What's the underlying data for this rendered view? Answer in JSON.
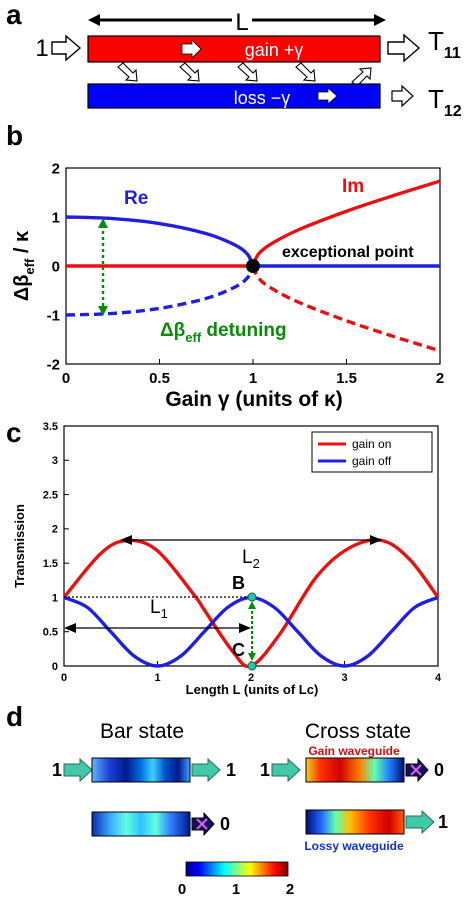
{
  "panels": {
    "a": {
      "label": "a",
      "length_label": "L",
      "input_label": "1",
      "gain_text": "gain +γ",
      "loss_text": "loss −γ",
      "out1": {
        "main": "T",
        "sub": "11"
      },
      "out2": {
        "main": "T",
        "sub": "12"
      },
      "gain_color": "#ff0000",
      "loss_color": "#0000ff"
    },
    "b": {
      "label": "b",
      "re_label": "Re",
      "im_label": "Im",
      "ep_label": "exceptional point",
      "detuning_label": {
        "pre": "Δβ",
        "sub": "eff",
        "post": " detuning"
      },
      "ylabel": {
        "pre": "Δβ",
        "sub": "eff",
        "post": " / κ"
      },
      "xlabel": "Gain γ  (units of κ)"
    },
    "c": {
      "label": "c",
      "xlabel": "Length L (units of Lc)",
      "ylabel": "Transmission",
      "legend": [
        "gain on",
        "gain off"
      ],
      "L1": {
        "main": "L",
        "sub": "1"
      },
      "L2": {
        "main": "L",
        "sub": "2"
      },
      "point_b": "B",
      "point_c": "C"
    },
    "d": {
      "label": "d",
      "bar_title": "Bar state",
      "cross_title": "Cross state",
      "gain_wg": "Gain waveguide",
      "lossy_wg": "Lossy waveguide",
      "bar_in": "1",
      "bar_out": "1",
      "bar_lower_out": "0",
      "cross_in": "1",
      "cross_upper_out": "0",
      "cross_lower_out": "1",
      "colorbar_ticks": [
        "0",
        "1",
        "2"
      ]
    }
  },
  "chart_data": [
    {
      "type": "line",
      "panel": "b",
      "xlim": [
        0,
        2
      ],
      "ylim": [
        -2,
        2
      ],
      "xticks": [
        "0",
        "0.5",
        "1",
        "1.5",
        "2"
      ],
      "yticks": [
        "-2",
        "-1",
        "0",
        "1",
        "2"
      ],
      "grid": false,
      "series": [
        {
          "name": "Re",
          "color": "#1f1fdf",
          "x": [
            0,
            0.25,
            0.5,
            0.75,
            0.9,
            0.97,
            1.0
          ],
          "values": [
            1,
            0.968,
            0.866,
            0.661,
            0.436,
            0.243,
            0
          ]
        },
        {
          "name": "Re",
          "color": "#1f1fdf",
          "dashed": true,
          "x": [
            0,
            0.25,
            0.5,
            0.75,
            0.9,
            0.97,
            1.0
          ],
          "values": [
            -1,
            -0.968,
            -0.866,
            -0.661,
            -0.436,
            -0.243,
            0
          ]
        },
        {
          "color": "#e81010",
          "x": [
            0,
            1
          ],
          "values": [
            0,
            0
          ]
        },
        {
          "color": "#1f1fdf",
          "x": [
            1,
            2
          ],
          "values": [
            0,
            0
          ]
        },
        {
          "name": "Im",
          "color": "#e81010",
          "x": [
            1.0,
            1.03,
            1.1,
            1.25,
            1.5,
            1.75,
            2.0
          ],
          "values": [
            0,
            0.248,
            0.458,
            0.75,
            1.118,
            1.436,
            1.732
          ]
        },
        {
          "name": "Im",
          "color": "#e81010",
          "dashed": true,
          "x": [
            1.0,
            1.03,
            1.1,
            1.25,
            1.5,
            1.75,
            2.0
          ],
          "values": [
            0,
            -0.248,
            -0.458,
            -0.75,
            -1.118,
            -1.436,
            -1.732
          ]
        }
      ],
      "annotations": [
        {
          "text": "exceptional point",
          "x": 1,
          "y": 0
        },
        {
          "text": "detuning arrow",
          "x": 0.2,
          "y_from": -1,
          "y_to": 1
        }
      ]
    },
    {
      "type": "line",
      "panel": "c",
      "xlim": [
        0,
        4
      ],
      "ylim": [
        0,
        3.5
      ],
      "xticks": [
        "0",
        "1",
        "2",
        "3",
        "4"
      ],
      "yticks": [
        "0",
        "0.5",
        "1",
        "1.5",
        "2",
        "2.5",
        "3",
        "3.5"
      ],
      "grid": false,
      "legend_position": "top-right",
      "series": [
        {
          "name": "gain on",
          "color": "#e81010",
          "x": [
            0,
            0.4,
            0.68,
            1.0,
            1.4,
            1.5,
            1.8,
            2.0,
            2.3,
            2.7,
            3.05,
            3.4,
            3.7,
            4.0
          ],
          "values": [
            1,
            1.65,
            1.83,
            1.68,
            1.02,
            0.82,
            0.22,
            0.0,
            0.45,
            1.3,
            1.72,
            1.83,
            1.55,
            1.0
          ]
        },
        {
          "name": "gain off",
          "color": "#1f1fdf",
          "x": [
            0,
            0.25,
            0.5,
            0.75,
            1.0,
            1.25,
            1.5,
            1.75,
            2.0,
            2.25,
            2.5,
            2.75,
            3.0,
            3.25,
            3.5,
            3.75,
            4.0
          ],
          "values": [
            1,
            0.854,
            0.5,
            0.146,
            0,
            0.146,
            0.5,
            0.854,
            1,
            0.854,
            0.5,
            0.146,
            0,
            0.146,
            0.5,
            0.854,
            1
          ]
        }
      ],
      "annotations": [
        {
          "text": "L2",
          "x_from": 0.68,
          "x_to": 3.4,
          "y": 1.83
        },
        {
          "text": "L1",
          "x_from": 0,
          "x_to": 2,
          "y": 0.55
        },
        {
          "text": "B",
          "x": 2,
          "y": 1
        },
        {
          "text": "C",
          "x": 2,
          "y": 0
        }
      ]
    }
  ]
}
